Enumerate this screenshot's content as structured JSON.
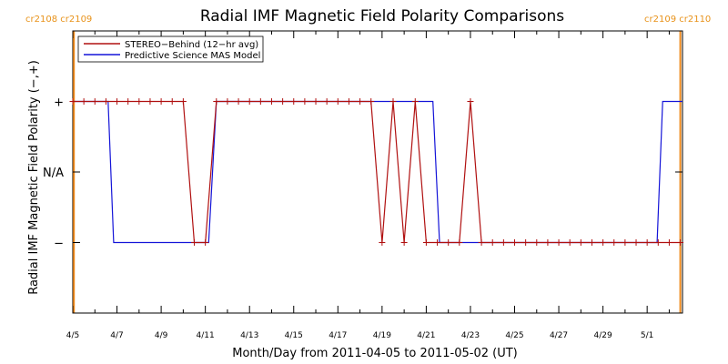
{
  "chart_data": {
    "type": "line",
    "title": "Radial IMF Magnetic Field Polarity Comparisons",
    "xlabel": "Month/Day from 2011-04-05 to 2011-05-02 (UT)",
    "ylabel": "Radial IMF Magnetic Field Polarity (−,+)",
    "xlim_days": [
      0,
      27.6
    ],
    "ylim": [
      -2,
      2
    ],
    "y_ticks": [
      {
        "value": 1,
        "label": "+"
      },
      {
        "value": 0,
        "label": "N/A"
      },
      {
        "value": -1,
        "label": "−"
      }
    ],
    "x_ticks": [
      {
        "value": 0,
        "label": "4/5"
      },
      {
        "value": 2,
        "label": "4/7"
      },
      {
        "value": 4,
        "label": "4/9"
      },
      {
        "value": 6,
        "label": "4/11"
      },
      {
        "value": 8,
        "label": "4/13"
      },
      {
        "value": 10,
        "label": "4/15"
      },
      {
        "value": 12,
        "label": "4/17"
      },
      {
        "value": 14,
        "label": "4/19"
      },
      {
        "value": 16,
        "label": "4/21"
      },
      {
        "value": 18,
        "label": "4/23"
      },
      {
        "value": 20,
        "label": "4/25"
      },
      {
        "value": 22,
        "label": "4/27"
      },
      {
        "value": 24,
        "label": "4/29"
      },
      {
        "value": 26,
        "label": "5/1"
      }
    ],
    "carrington": {
      "left_label": "cr2108 cr2109",
      "right_label": "cr2109 cr2110",
      "left_day": 0.05,
      "right_day": 27.5
    },
    "series": [
      {
        "name": "STEREO−Behind (12−hr avg)",
        "color": "#b01010",
        "markers": true,
        "x": [
          0,
          0.5,
          1,
          1.5,
          2,
          2.5,
          3,
          3.5,
          4,
          4.5,
          5,
          5.5,
          6,
          6.5,
          7,
          7.5,
          8,
          8.5,
          9,
          9.5,
          10,
          10.5,
          11,
          11.5,
          12,
          12.5,
          13,
          13.5,
          14,
          14.5,
          15,
          15.5,
          16,
          16.5,
          17,
          17.5,
          18,
          18.5,
          19,
          19.5,
          20,
          20.5,
          21,
          21.5,
          22,
          22.5,
          23,
          23.5,
          24,
          24.5,
          25,
          25.5,
          26,
          26.5,
          27,
          27.5
        ],
        "y": [
          1,
          1,
          1,
          1,
          1,
          1,
          1,
          1,
          1,
          1,
          1,
          -1,
          -1,
          1,
          1,
          1,
          1,
          1,
          1,
          1,
          1,
          1,
          1,
          1,
          1,
          1,
          1,
          1,
          -1,
          1,
          -1,
          1,
          -1,
          -1,
          -1,
          -1,
          1,
          -1,
          -1,
          -1,
          -1,
          -1,
          -1,
          -1,
          -1,
          -1,
          -1,
          -1,
          -1,
          -1,
          -1,
          -1,
          -1,
          -1,
          -1,
          -1
        ]
      },
      {
        "name": "Predictive Science MAS Model",
        "color": "#1414d8",
        "markers": false,
        "x": [
          0,
          1.6,
          1.85,
          6.15,
          6.5,
          16.3,
          16.6,
          26.45,
          26.7,
          27.6
        ],
        "y": [
          1,
          1,
          -1,
          -1,
          1,
          1,
          -1,
          -1,
          1,
          1
        ]
      }
    ],
    "grid": false,
    "legend": "top-left"
  }
}
